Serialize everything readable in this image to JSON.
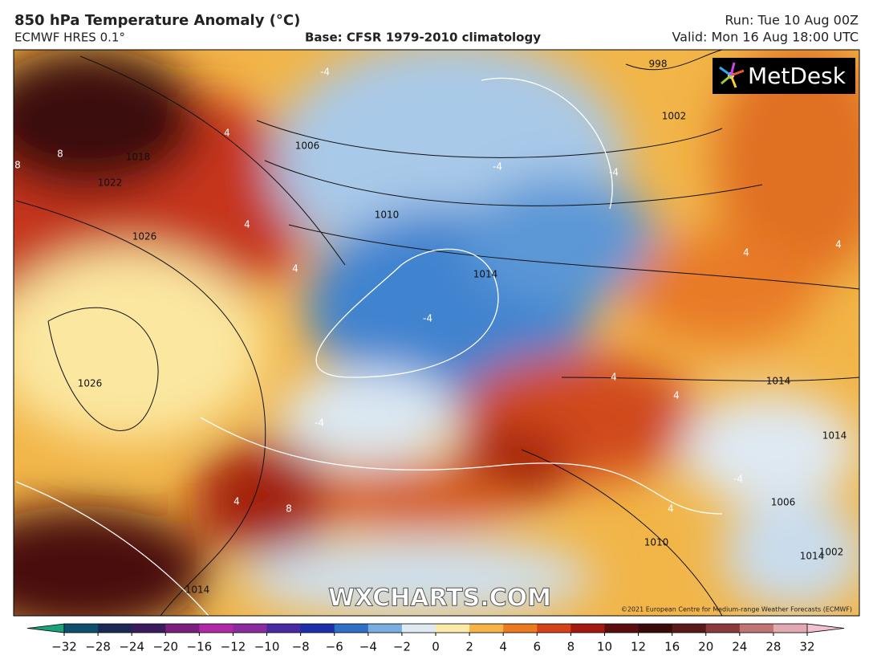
{
  "header": {
    "title": "850 hPa Temperature Anomaly (°C)",
    "model": "ECMWF HRES 0.1°",
    "base": "Base: CFSR 1979-2010 climatology",
    "run": "Run: Tue 10 Aug 00Z",
    "valid": "Valid: Mon 16 Aug 18:00 UTC"
  },
  "logo": "MetDesk",
  "watermark": "WXCHARTS.COM",
  "copyright": "©2021 European Centre for Medium-range Weather Forecasts (ECMWF)",
  "isobar_labels": [
    "1018",
    "1022",
    "1026",
    "1026",
    "1006",
    "1010",
    "1014",
    "1002",
    "998",
    "1014",
    "1014",
    "1014",
    "1010",
    "1006",
    "1002",
    "1014"
  ],
  "anomaly_labels": [
    "8",
    "8",
    "4",
    "4",
    "4",
    "-4",
    "-4",
    "-4",
    "-4",
    "-4",
    "4",
    "4",
    "4",
    "8",
    "4",
    "4",
    "-4",
    "4"
  ],
  "colorbar": {
    "ticks": [
      {
        "value": -32,
        "label": "−32"
      },
      {
        "value": -28,
        "label": "−28"
      },
      {
        "value": -24,
        "label": "−24"
      },
      {
        "value": -20,
        "label": "−20"
      },
      {
        "value": -16,
        "label": "−16"
      },
      {
        "value": -12,
        "label": "−12"
      },
      {
        "value": -10,
        "label": "−10"
      },
      {
        "value": -8,
        "label": "−8"
      },
      {
        "value": -6,
        "label": "−6"
      },
      {
        "value": -4,
        "label": "−4"
      },
      {
        "value": -2,
        "label": "−2"
      },
      0,
      2,
      4,
      6,
      8,
      10,
      12,
      16,
      20,
      24,
      28,
      32
    ],
    "colors": [
      "#0f4f6e",
      "#1b2a55",
      "#3a1b5e",
      "#7a1f7d",
      "#b02aa8",
      "#8a2c9e",
      "#4a2aa0",
      "#1c2ea8",
      "#2f6fc4",
      "#79aee0",
      "#dfeaf3",
      "#fbeaa8",
      "#f6b347",
      "#eb7a22",
      "#d4421a",
      "#a3180f",
      "#5c0d0d",
      "#3a0a0a",
      "#5a1a1a",
      "#8a3a3a",
      "#c07575",
      "#e2aab0"
    ],
    "low_color": "#1aa37a",
    "high_color": "#f0c2cf"
  }
}
